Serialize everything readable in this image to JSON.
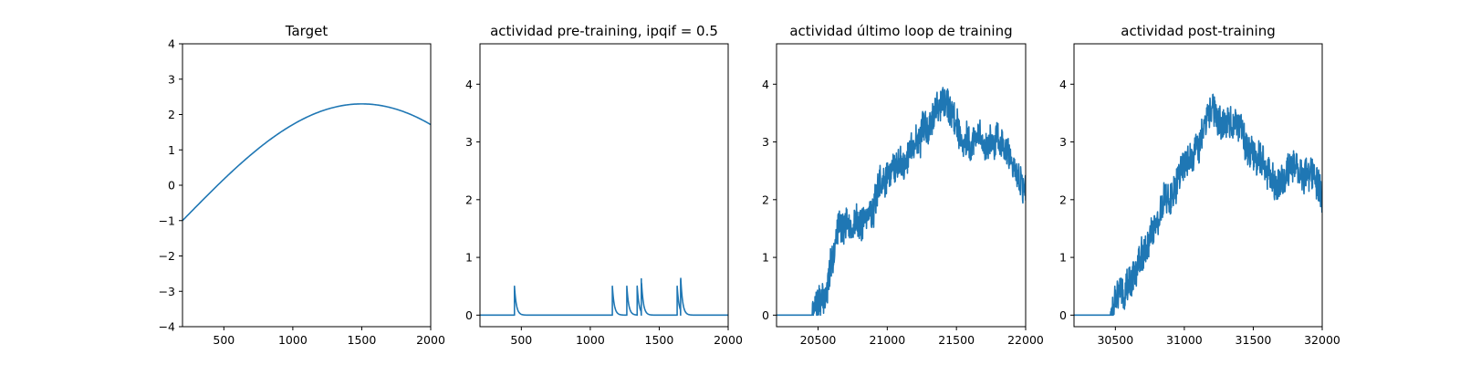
{
  "colors": {
    "line": "#1f77b4",
    "background": "#ffffff",
    "axis": "#000000"
  },
  "chart_data": [
    {
      "type": "line",
      "title": "Target",
      "xlabel": "",
      "ylabel": "",
      "xlim": [
        200,
        2000
      ],
      "ylim": [
        -4,
        4
      ],
      "xticks": [
        500,
        1000,
        1500,
        2000
      ],
      "yticks": [
        -4,
        -3,
        -2,
        -1,
        0,
        1,
        2,
        3,
        4
      ],
      "grid": false,
      "series": [
        {
          "kind": "sine",
          "x_start": 200,
          "x_end": 2000,
          "offset": -1.0,
          "amplitude": 3.3,
          "period": 5200,
          "step": 10
        }
      ]
    },
    {
      "type": "line",
      "title": "actividad pre-training, ipqif = 0.5",
      "xlabel": "",
      "ylabel": "",
      "xlim": [
        200,
        2000
      ],
      "ylim": [
        -0.2,
        4.7
      ],
      "xticks": [
        500,
        1000,
        1500,
        2000
      ],
      "yticks": [
        0,
        1,
        2,
        3,
        4
      ],
      "grid": false,
      "series": [
        {
          "kind": "spikes",
          "x_start": 200,
          "x_end": 2000,
          "base": 0,
          "decay": 14,
          "spikes": [
            [
              450,
              0.5
            ],
            [
              1160,
              0.5
            ],
            [
              1265,
              0.5
            ],
            [
              1340,
              0.5
            ],
            [
              1370,
              0.57
            ],
            [
              1630,
              0.5
            ],
            [
              1655,
              0.6
            ]
          ]
        }
      ]
    },
    {
      "type": "line",
      "title": "actividad último loop de training",
      "xlabel": "",
      "ylabel": "",
      "xlim": [
        20200,
        22000
      ],
      "ylim": [
        -0.2,
        4.7
      ],
      "xticks": [
        20500,
        21000,
        21500,
        22000
      ],
      "yticks": [
        0,
        1,
        2,
        3,
        4
      ],
      "grid": false,
      "series": [
        {
          "kind": "noisy",
          "x_start": 20200,
          "x_end": 22000,
          "onset": 20460,
          "seed": 7,
          "envelope": [
            [
              20200,
              0
            ],
            [
              20460,
              0
            ],
            [
              20500,
              0.3
            ],
            [
              20560,
              0.35
            ],
            [
              20600,
              0.9
            ],
            [
              20660,
              1.7
            ],
            [
              20720,
              1.5
            ],
            [
              20800,
              1.6
            ],
            [
              20900,
              1.9
            ],
            [
              21000,
              2.4
            ],
            [
              21100,
              2.7
            ],
            [
              21200,
              3.0
            ],
            [
              21300,
              3.2
            ],
            [
              21380,
              3.9
            ],
            [
              21450,
              3.6
            ],
            [
              21550,
              3.1
            ],
            [
              21650,
              3.0
            ],
            [
              21750,
              3.0
            ],
            [
              21850,
              2.9
            ],
            [
              21950,
              2.4
            ],
            [
              22000,
              2.3
            ]
          ]
        }
      ]
    },
    {
      "type": "line",
      "title": "actividad post-training",
      "xlabel": "",
      "ylabel": "",
      "xlim": [
        30200,
        32000
      ],
      "ylim": [
        -0.2,
        4.7
      ],
      "xticks": [
        30500,
        31000,
        31500,
        32000
      ],
      "yticks": [
        0,
        1,
        2,
        3,
        4
      ],
      "grid": false,
      "series": [
        {
          "kind": "noisy",
          "x_start": 30200,
          "x_end": 32000,
          "onset": 30460,
          "seed": 13,
          "envelope": [
            [
              30200,
              0
            ],
            [
              30460,
              0
            ],
            [
              30500,
              0.2
            ],
            [
              30600,
              0.5
            ],
            [
              30700,
              1.0
            ],
            [
              30800,
              1.6
            ],
            [
              30900,
              2.1
            ],
            [
              31000,
              2.6
            ],
            [
              31100,
              3.0
            ],
            [
              31200,
              3.4
            ],
            [
              31300,
              3.3
            ],
            [
              31400,
              3.1
            ],
            [
              31500,
              2.9
            ],
            [
              31600,
              2.4
            ],
            [
              31700,
              2.5
            ],
            [
              31800,
              2.6
            ],
            [
              31900,
              2.4
            ],
            [
              32000,
              1.9
            ]
          ]
        }
      ]
    }
  ]
}
